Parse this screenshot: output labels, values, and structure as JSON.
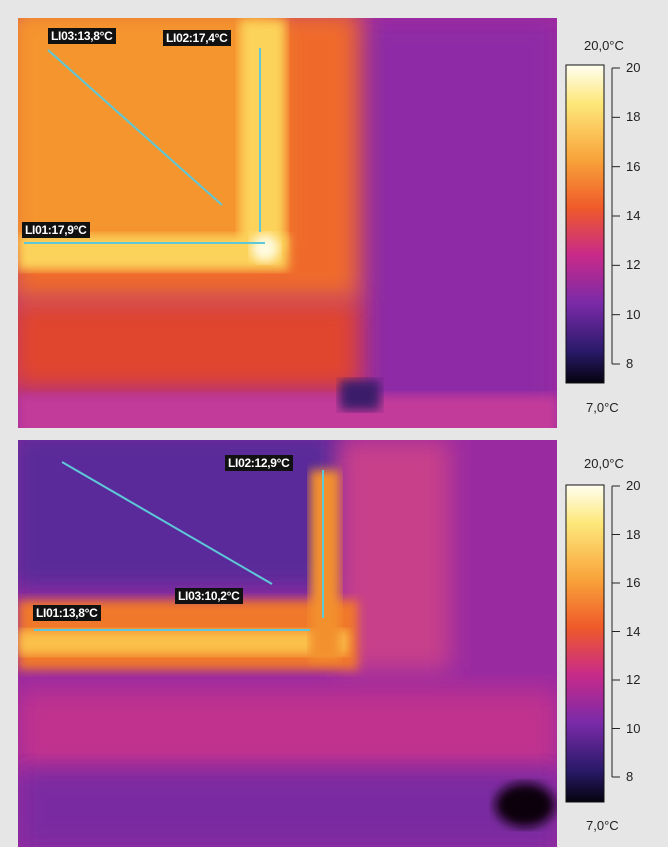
{
  "panels": [
    {
      "labels": [
        "LI03:13,8°C",
        "LI02:17,4°C",
        "LI01:17,9°C"
      ],
      "scale": {
        "max_label": "20,0°C",
        "min_label": "7,0°C",
        "ticks": [
          8,
          10,
          12,
          14,
          16,
          18,
          20
        ]
      }
    },
    {
      "labels": [
        "LI02:12,9°C",
        "LI03:10,2°C",
        "LI01:13,8°C"
      ],
      "scale": {
        "max_label": "20,0°C",
        "min_label": "7,0°C",
        "ticks": [
          8,
          10,
          12,
          14,
          16,
          18,
          20
        ]
      }
    }
  ]
}
